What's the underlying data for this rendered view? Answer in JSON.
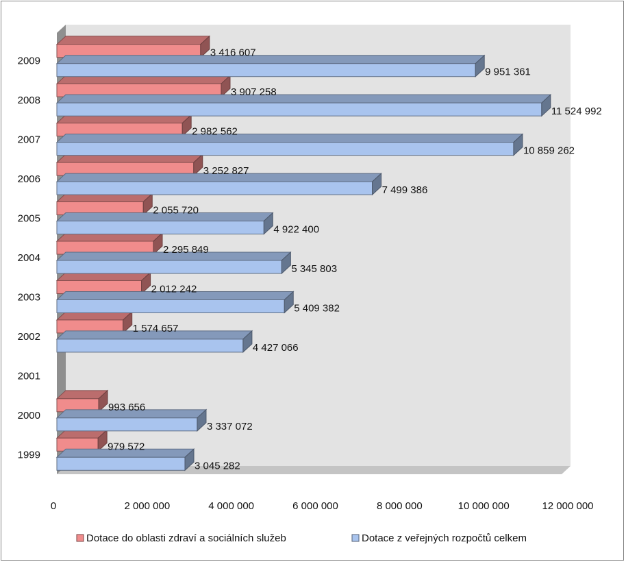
{
  "chart_data": {
    "type": "bar",
    "orientation": "horizontal",
    "categories": [
      "1999",
      "2000",
      "2001",
      "2002",
      "2003",
      "2004",
      "2005",
      "2006",
      "2007",
      "2008",
      "2009"
    ],
    "series": [
      {
        "name": "Dotace do oblasti zdraví a sociálních služeb",
        "color": "#f08c8c",
        "values": [
          979572,
          993656,
          null,
          1574657,
          2012242,
          2295849,
          2055720,
          3252827,
          2982562,
          3907258,
          3416607
        ],
        "labels": [
          "979 572",
          "993 656",
          "",
          "1 574 657",
          "2 012 242",
          "2 295 849",
          "2 055 720",
          "3 252 827",
          "2 982 562",
          "3 907 258",
          "3 416 607"
        ]
      },
      {
        "name": "Dotace z veřejných rozpočtů celkem",
        "color": "#a9c4ee",
        "values": [
          3045282,
          3337072,
          null,
          4427066,
          5409382,
          5345803,
          4922400,
          7499386,
          10859262,
          11524992,
          9951361
        ],
        "labels": [
          "3 045 282",
          "3 337 072",
          "",
          "4 427 066",
          "5 409 382",
          "5 345 803",
          "4 922 400",
          "7 499 386",
          "10 859 262",
          "11 524 992",
          "9 951 361"
        ]
      }
    ],
    "xlim": [
      0,
      12000000
    ],
    "xticks": [
      0,
      2000000,
      4000000,
      6000000,
      8000000,
      10000000,
      12000000
    ],
    "xtick_labels": [
      "0",
      "2 000 000",
      "4 000 000",
      "6 000 000",
      "8 000 000",
      "10 000 000",
      "12 000 000"
    ],
    "title": "",
    "xlabel": "",
    "ylabel": "",
    "grid": false,
    "legend": "bottom",
    "wall_color": "#e3e3e3"
  }
}
